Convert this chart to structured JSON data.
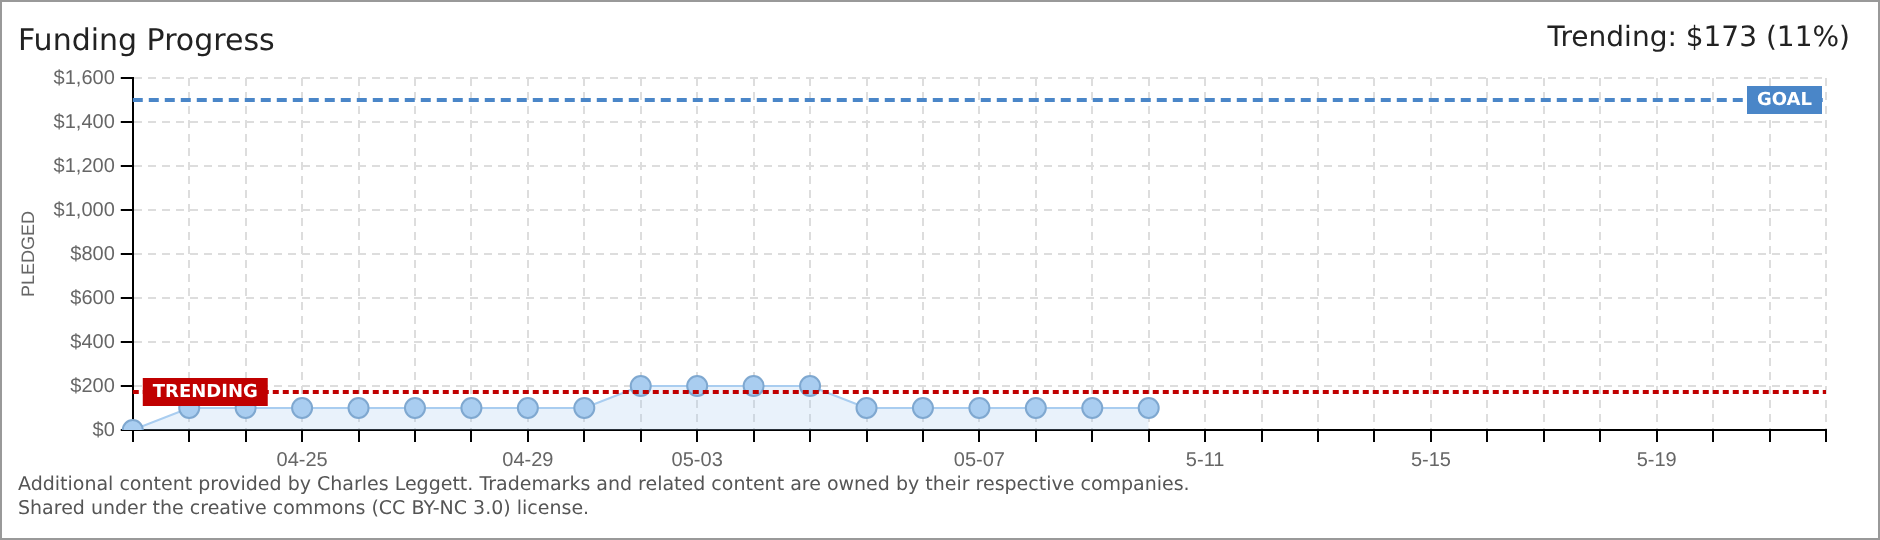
{
  "chart_data": {
    "type": "area",
    "title": "Funding Progress",
    "ylabel": "PLEDGED",
    "categories": [
      null,
      null,
      null,
      "04-25",
      null,
      null,
      null,
      "04-29",
      null,
      null,
      "05-03",
      null,
      null,
      null,
      null,
      "05-07",
      null,
      null,
      null,
      "5-11",
      null,
      null,
      null,
      "5-15",
      null,
      null,
      null,
      "5-19",
      null,
      null,
      null
    ],
    "series": [
      {
        "color": "#a9cdf0",
        "values": [
          0,
          100,
          100,
          100,
          100,
          100,
          100,
          100,
          100,
          200,
          200,
          200,
          200,
          100,
          100,
          100,
          100,
          100,
          100,
          null,
          null,
          null,
          null,
          null,
          null,
          null,
          null,
          null,
          null,
          null,
          null
        ]
      }
    ],
    "ylim": [
      0,
      1600
    ],
    "yticks": [
      {
        "value": 0,
        "label": "$0"
      },
      {
        "value": 200,
        "label": "$200"
      },
      {
        "value": 400,
        "label": "$400"
      },
      {
        "value": 600,
        "label": "$600"
      },
      {
        "value": 800,
        "label": "$800"
      },
      {
        "value": 1000,
        "label": "$1,000"
      },
      {
        "value": 1200,
        "label": "$1,200"
      },
      {
        "value": 1400,
        "label": "$1,400"
      },
      {
        "value": 1600,
        "label": "$1,600"
      }
    ],
    "ref_lines": [
      {
        "axis": "y",
        "value": 1500,
        "label": "GOAL",
        "color": "#4a86c8",
        "line_style": "dashed"
      },
      {
        "axis": "y",
        "value": 173,
        "label": "TRENDING",
        "color": "#c00000",
        "line_style": "dotted"
      }
    ],
    "grid": true,
    "marker": "circle",
    "legend": false,
    "annotations": [
      "Trending: $173 (11%)",
      "Additional content provided by Charles Leggett. Trademarks and related content are owned by their respective companies.",
      "Shared under the creative commons (CC BY-NC 3.0) license."
    ]
  }
}
